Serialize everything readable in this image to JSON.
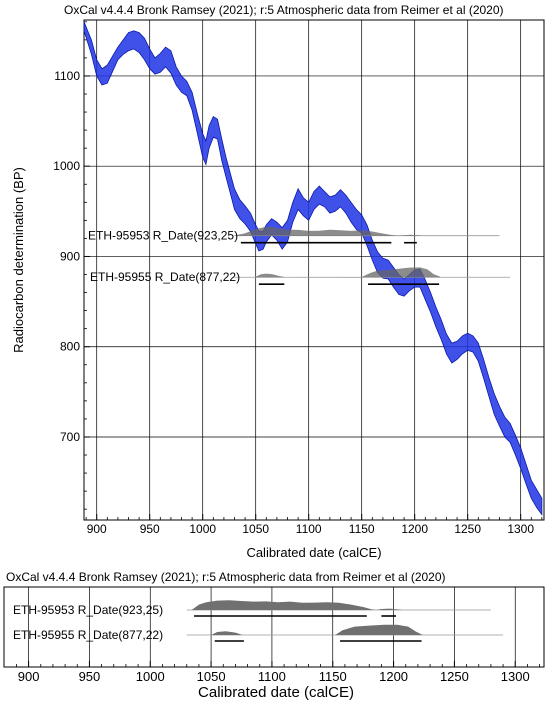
{
  "chart_data": [
    {
      "type": "area",
      "title": "OxCal v4.4.4 Bronk Ramsey (2021); r:5 Atmospheric data from Reimer et al (2020)",
      "xlabel": "Calibrated date (calCE)",
      "ylabel": "Radiocarbon determination (BP)",
      "xlim": [
        888,
        1322
      ],
      "ylim": [
        608,
        1162
      ],
      "x_ticks": [
        900,
        950,
        1000,
        1050,
        1100,
        1150,
        1200,
        1250,
        1300
      ],
      "y_ticks": [
        700,
        800,
        900,
        1000,
        1100
      ],
      "grid": true,
      "calibration_curve": {
        "color": "#1f33e6",
        "points": [
          [
            888,
            1150,
            1160
          ],
          [
            895,
            1124,
            1140
          ],
          [
            900,
            1100,
            1118
          ],
          [
            905,
            1090,
            1108
          ],
          [
            910,
            1092,
            1112
          ],
          [
            915,
            1105,
            1122
          ],
          [
            920,
            1118,
            1132
          ],
          [
            925,
            1124,
            1140
          ],
          [
            930,
            1128,
            1148
          ],
          [
            935,
            1130,
            1150
          ],
          [
            940,
            1126,
            1148
          ],
          [
            945,
            1118,
            1142
          ],
          [
            950,
            1108,
            1130
          ],
          [
            955,
            1102,
            1120
          ],
          [
            960,
            1104,
            1125
          ],
          [
            965,
            1110,
            1132
          ],
          [
            970,
            1103,
            1128
          ],
          [
            975,
            1090,
            1110
          ],
          [
            980,
            1082,
            1100
          ],
          [
            985,
            1078,
            1094
          ],
          [
            990,
            1062,
            1082
          ],
          [
            995,
            1036,
            1058
          ],
          [
            1000,
            1010,
            1036
          ],
          [
            1003,
            1002,
            1028
          ],
          [
            1006,
            1020,
            1045
          ],
          [
            1010,
            1032,
            1055
          ],
          [
            1014,
            1030,
            1052
          ],
          [
            1018,
            1006,
            1030
          ],
          [
            1022,
            988,
            1010
          ],
          [
            1026,
            970,
            992
          ],
          [
            1030,
            952,
            975
          ],
          [
            1035,
            942,
            963
          ],
          [
            1040,
            936,
            956
          ],
          [
            1045,
            928,
            948
          ],
          [
            1050,
            914,
            935
          ],
          [
            1053,
            906,
            928
          ],
          [
            1057,
            908,
            928
          ],
          [
            1060,
            916,
            935
          ],
          [
            1065,
            924,
            942
          ],
          [
            1070,
            918,
            938
          ],
          [
            1075,
            908,
            932
          ],
          [
            1080,
            916,
            940
          ],
          [
            1085,
            938,
            960
          ],
          [
            1090,
            952,
            975
          ],
          [
            1095,
            945,
            965
          ],
          [
            1100,
            940,
            960
          ],
          [
            1105,
            952,
            972
          ],
          [
            1110,
            958,
            978
          ],
          [
            1115,
            955,
            972
          ],
          [
            1120,
            948,
            966
          ],
          [
            1125,
            950,
            968
          ],
          [
            1130,
            955,
            974
          ],
          [
            1135,
            948,
            968
          ],
          [
            1140,
            938,
            960
          ],
          [
            1145,
            930,
            952
          ],
          [
            1150,
            926,
            946
          ],
          [
            1155,
            912,
            935
          ],
          [
            1160,
            896,
            918
          ],
          [
            1165,
            882,
            905
          ],
          [
            1170,
            876,
            898
          ],
          [
            1175,
            875,
            896
          ],
          [
            1180,
            866,
            888
          ],
          [
            1185,
            858,
            880
          ],
          [
            1190,
            856,
            875
          ],
          [
            1195,
            862,
            880
          ],
          [
            1200,
            866,
            885
          ],
          [
            1205,
            866,
            886
          ],
          [
            1210,
            852,
            874
          ],
          [
            1215,
            838,
            860
          ],
          [
            1220,
            822,
            844
          ],
          [
            1225,
            808,
            830
          ],
          [
            1230,
            792,
            814
          ],
          [
            1235,
            782,
            804
          ],
          [
            1240,
            786,
            806
          ],
          [
            1245,
            792,
            812
          ],
          [
            1250,
            796,
            815
          ],
          [
            1255,
            794,
            812
          ],
          [
            1260,
            784,
            804
          ],
          [
            1265,
            765,
            786
          ],
          [
            1270,
            745,
            766
          ],
          [
            1275,
            725,
            748
          ],
          [
            1280,
            712,
            734
          ],
          [
            1285,
            700,
            722
          ],
          [
            1290,
            694,
            715
          ],
          [
            1295,
            680,
            702
          ],
          [
            1300,
            665,
            688
          ],
          [
            1305,
            648,
            670
          ],
          [
            1310,
            632,
            652
          ],
          [
            1315,
            622,
            642
          ],
          [
            1320,
            614,
            632
          ]
        ]
      },
      "dates": [
        {
          "name": "ETH-95953 R_Date(923,25)",
          "bp": 923,
          "error": 25,
          "prob_color": "#666666",
          "density": [
            [
              1030,
              0.02
            ],
            [
              1040,
              0.2
            ],
            [
              1050,
              0.55
            ],
            [
              1058,
              0.72
            ],
            [
              1065,
              0.75
            ],
            [
              1072,
              0.6
            ],
            [
              1080,
              0.5
            ],
            [
              1090,
              0.48
            ],
            [
              1100,
              0.4
            ],
            [
              1110,
              0.42
            ],
            [
              1120,
              0.5
            ],
            [
              1130,
              0.45
            ],
            [
              1140,
              0.4
            ],
            [
              1150,
              0.45
            ],
            [
              1160,
              0.35
            ],
            [
              1170,
              0.18
            ],
            [
              1178,
              0.06
            ],
            [
              1185,
              0.0
            ],
            [
              1190,
              0.04
            ],
            [
              1196,
              0.08
            ],
            [
              1202,
              0.04
            ],
            [
              1208,
              0.0
            ]
          ],
          "ranges_95": [
            [
              1036,
              1178
            ],
            [
              1190,
              1202
            ]
          ]
        },
        {
          "name": "ETH-95955 R_Date(877,22)",
          "bp": 877,
          "error": 22,
          "prob_color": "#666666",
          "density": [
            [
              1050,
              0.05
            ],
            [
              1055,
              0.25
            ],
            [
              1060,
              0.3
            ],
            [
              1066,
              0.25
            ],
            [
              1072,
              0.1
            ],
            [
              1078,
              0.0
            ],
            [
              1150,
              0.02
            ],
            [
              1158,
              0.35
            ],
            [
              1165,
              0.55
            ],
            [
              1175,
              0.6
            ],
            [
              1185,
              0.7
            ],
            [
              1195,
              0.8
            ],
            [
              1205,
              0.82
            ],
            [
              1212,
              0.65
            ],
            [
              1218,
              0.25
            ],
            [
              1224,
              0.05
            ]
          ],
          "ranges_95": [
            [
              1053,
              1077
            ],
            [
              1156,
              1223
            ]
          ]
        }
      ]
    },
    {
      "type": "area",
      "title": "OxCal v4.4.4 Bronk Ramsey (2021); r:5 Atmospheric data from Reimer et al (2020)",
      "xlabel": "Calibrated date  (calCE)",
      "xlim": [
        888,
        1322
      ],
      "x_ticks": [
        900,
        950,
        1000,
        1050,
        1100,
        1150,
        1200,
        1250,
        1300
      ],
      "grid": true,
      "dates": [
        {
          "name": "ETH-95953 R_Date(923,25)",
          "density": [
            [
              1034,
              0.0
            ],
            [
              1040,
              0.45
            ],
            [
              1046,
              0.65
            ],
            [
              1055,
              0.78
            ],
            [
              1065,
              0.82
            ],
            [
              1075,
              0.75
            ],
            [
              1085,
              0.7
            ],
            [
              1095,
              0.72
            ],
            [
              1105,
              0.65
            ],
            [
              1115,
              0.7
            ],
            [
              1125,
              0.6
            ],
            [
              1135,
              0.62
            ],
            [
              1145,
              0.65
            ],
            [
              1155,
              0.6
            ],
            [
              1165,
              0.45
            ],
            [
              1175,
              0.25
            ],
            [
              1182,
              0.05
            ],
            [
              1186,
              0.0
            ],
            [
              1190,
              0.08
            ],
            [
              1197,
              0.12
            ],
            [
              1203,
              0.05
            ],
            [
              1208,
              0.0
            ]
          ],
          "ranges_95": [
            [
              1036,
              1178
            ],
            [
              1190,
              1202
            ]
          ]
        },
        {
          "name": "ETH-95955 R_Date(877,22)",
          "density": [
            [
              1050,
              0.0
            ],
            [
              1055,
              0.25
            ],
            [
              1062,
              0.32
            ],
            [
              1070,
              0.2
            ],
            [
              1076,
              0.0
            ],
            [
              1152,
              0.0
            ],
            [
              1158,
              0.4
            ],
            [
              1168,
              0.7
            ],
            [
              1180,
              0.78
            ],
            [
              1192,
              0.85
            ],
            [
              1203,
              0.85
            ],
            [
              1212,
              0.7
            ],
            [
              1218,
              0.3
            ],
            [
              1224,
              0.0
            ]
          ],
          "ranges_95": [
            [
              1053,
              1077
            ],
            [
              1156,
              1223
            ]
          ]
        }
      ]
    }
  ]
}
